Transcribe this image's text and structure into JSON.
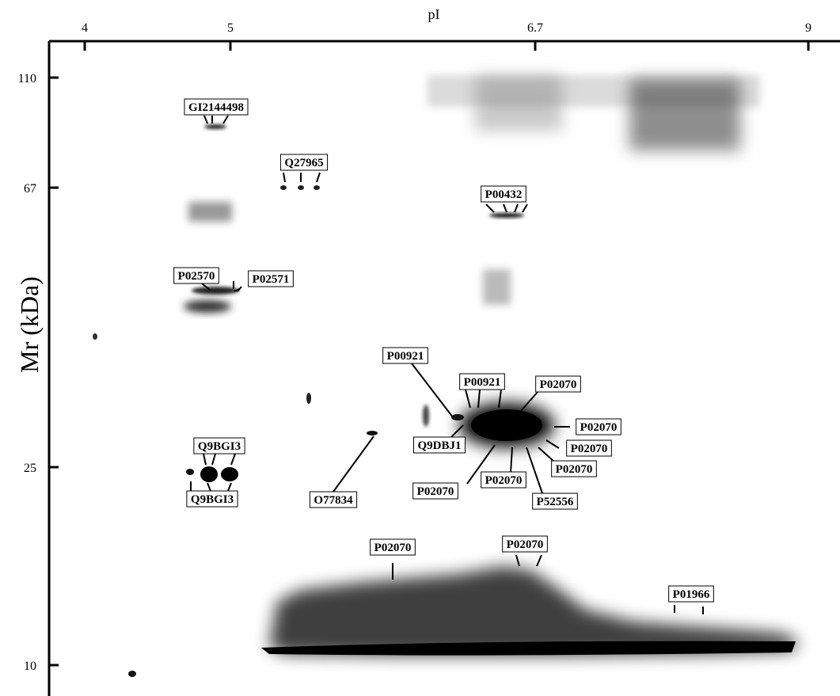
{
  "axes": {
    "x_title": "pI",
    "x_ticks": [
      "4",
      "5",
      "6.7",
      "9"
    ],
    "y_title": "Mr (kDa)",
    "y_ticks": [
      "110",
      "67",
      "25",
      "10"
    ]
  },
  "spot_labels": [
    "GI2144498",
    "Q27965",
    "P00432",
    "P02570",
    "P02571",
    "P00921",
    "P00921",
    "P02070",
    "P02070",
    "Q9DBJ1",
    "P02070",
    "Q9BGI3",
    "Q9BGI3",
    "P02070",
    "P02070",
    "P02070",
    "P52556",
    "O77834",
    "P02070",
    "P02070",
    "P01966"
  ]
}
